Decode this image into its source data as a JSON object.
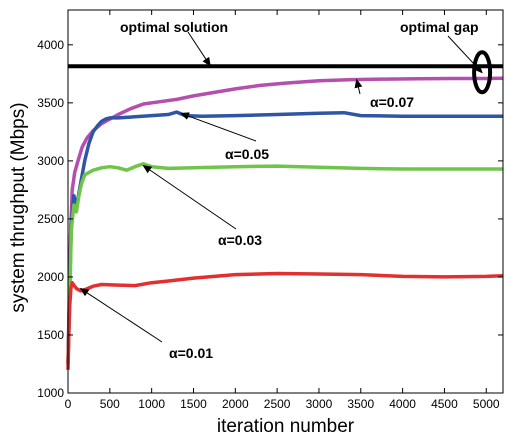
{
  "chart_data": {
    "type": "line",
    "title": "",
    "xlabel": "iteration number",
    "ylabel": "system thrughput (Mbps)",
    "xlim": [
      0,
      5200
    ],
    "ylim": [
      1000,
      4300
    ],
    "xticks": [
      0,
      500,
      1000,
      1500,
      2000,
      2500,
      3000,
      3500,
      4000,
      4500,
      5000
    ],
    "yticks": [
      1000,
      1500,
      2000,
      2500,
      3000,
      3500,
      4000
    ],
    "grid": false,
    "legend": "none",
    "series": [
      {
        "name": "optimal solution",
        "color": "#000000",
        "x": [
          0,
          5200
        ],
        "y": [
          3815,
          3815
        ]
      },
      {
        "name": "α=0.07",
        "color": "#b44fb0",
        "x": [
          0,
          15,
          30,
          50,
          80,
          120,
          170,
          230,
          300,
          400,
          500,
          600,
          750,
          900,
          1100,
          1300,
          1500,
          1750,
          2000,
          2300,
          2600,
          3000,
          3400,
          3800,
          4200,
          4600,
          5000,
          5200
        ],
        "y": [
          1250,
          1850,
          2350,
          2750,
          2900,
          3000,
          3120,
          3200,
          3260,
          3320,
          3360,
          3400,
          3450,
          3490,
          3510,
          3530,
          3560,
          3590,
          3620,
          3650,
          3670,
          3690,
          3700,
          3705,
          3708,
          3710,
          3710,
          3712
        ]
      },
      {
        "name": "α=0.05",
        "color": "#2f55a5",
        "x": [
          0,
          20,
          40,
          70,
          100,
          150,
          200,
          250,
          300,
          350,
          400,
          450,
          500,
          600,
          800,
          1000,
          1200,
          1300,
          1400,
          1600,
          2000,
          2500,
          3000,
          3300,
          3500,
          4000,
          4500,
          5000,
          5200
        ],
        "y": [
          1250,
          1900,
          2450,
          2700,
          2600,
          2800,
          3000,
          3150,
          3250,
          3300,
          3340,
          3360,
          3370,
          3370,
          3380,
          3390,
          3400,
          3420,
          3390,
          3385,
          3390,
          3400,
          3410,
          3415,
          3390,
          3385,
          3385,
          3385,
          3385
        ]
      },
      {
        "name": "α=0.03",
        "color": "#6fc54a",
        "x": [
          0,
          20,
          40,
          70,
          100,
          130,
          160,
          200,
          300,
          400,
          500,
          600,
          700,
          800,
          900,
          1000,
          1200,
          1500,
          2000,
          2500,
          3000,
          3500,
          4000,
          4500,
          5000,
          5200
        ],
        "y": [
          1250,
          1800,
          2400,
          2620,
          2560,
          2700,
          2800,
          2880,
          2920,
          2940,
          2950,
          2940,
          2920,
          2950,
          2975,
          2950,
          2935,
          2940,
          2950,
          2955,
          2945,
          2935,
          2930,
          2930,
          2930,
          2930
        ]
      },
      {
        "name": "α=0.01",
        "color": "#e23030",
        "x": [
          0,
          10,
          20,
          35,
          50,
          70,
          100,
          150,
          200,
          300,
          400,
          600,
          800,
          1000,
          1200,
          1500,
          2000,
          2500,
          3000,
          3500,
          4000,
          4500,
          5000,
          5200
        ],
        "y": [
          1200,
          1500,
          1750,
          1900,
          1950,
          1930,
          1900,
          1880,
          1890,
          1920,
          1935,
          1930,
          1925,
          1950,
          1965,
          1990,
          2020,
          2030,
          2025,
          2020,
          2005,
          2000,
          2005,
          2010
        ]
      }
    ],
    "annotations": [
      {
        "text": "optimal solution",
        "point_x": 1700,
        "point_y": 3820
      },
      {
        "text": "optimal gap",
        "point_x": 4950,
        "point_y": 3760
      },
      {
        "text": "α=0.07",
        "point_x": 3450,
        "point_y": 3700
      },
      {
        "text": "α=0.05",
        "point_x": 1350,
        "point_y": 3410
      },
      {
        "text": "α=0.03",
        "point_x": 900,
        "point_y": 2960
      },
      {
        "text": "α=0.01",
        "point_x": 150,
        "point_y": 1900
      }
    ]
  }
}
